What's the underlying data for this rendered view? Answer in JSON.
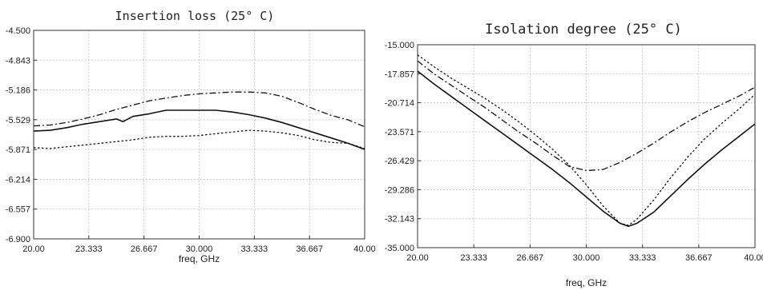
{
  "chart_data": [
    {
      "type": "line",
      "title": "Insertion loss (25° C)",
      "xlabel": "freq, GHz",
      "ylabel": "",
      "xlim": [
        20,
        40
      ],
      "ylim": [
        -6.9,
        -4.5
      ],
      "x_ticks": [
        "20.00",
        "23.333",
        "26.667",
        "30.000",
        "33.333",
        "36.667",
        "40.00"
      ],
      "y_ticks": [
        "-4.500",
        "-4.843",
        "-5.186",
        "-5.529",
        "-5.871",
        "-6.214",
        "-6.557",
        "-6.900"
      ],
      "grid": true,
      "series": [
        {
          "style": "dash-dot",
          "x": [
            20,
            21,
            22,
            23,
            24,
            25,
            26,
            27,
            28,
            29,
            30,
            31,
            32,
            33,
            34,
            35,
            36,
            37,
            38,
            39,
            40
          ],
          "y": [
            -5.6,
            -5.59,
            -5.56,
            -5.52,
            -5.47,
            -5.41,
            -5.36,
            -5.31,
            -5.28,
            -5.25,
            -5.23,
            -5.22,
            -5.21,
            -5.21,
            -5.22,
            -5.26,
            -5.33,
            -5.41,
            -5.48,
            -5.53,
            -5.61
          ]
        },
        {
          "style": "solid",
          "x": [
            20,
            21,
            22,
            23,
            24,
            25,
            25.4,
            26,
            27,
            28,
            29,
            30,
            31,
            32,
            33,
            34,
            35,
            36,
            37,
            38,
            39,
            40
          ],
          "y": [
            -5.66,
            -5.65,
            -5.62,
            -5.58,
            -5.55,
            -5.52,
            -5.55,
            -5.49,
            -5.46,
            -5.42,
            -5.42,
            -5.42,
            -5.42,
            -5.44,
            -5.47,
            -5.51,
            -5.56,
            -5.62,
            -5.68,
            -5.74,
            -5.8,
            -5.87
          ]
        },
        {
          "style": "dotted",
          "x": [
            20,
            21,
            22,
            23,
            24,
            25,
            26,
            27,
            28,
            29,
            30,
            31,
            32,
            33,
            34,
            35,
            36,
            37,
            38,
            39,
            40
          ],
          "y": [
            -5.85,
            -5.86,
            -5.84,
            -5.82,
            -5.8,
            -5.78,
            -5.76,
            -5.73,
            -5.72,
            -5.72,
            -5.71,
            -5.69,
            -5.67,
            -5.65,
            -5.66,
            -5.68,
            -5.71,
            -5.76,
            -5.79,
            -5.8,
            -5.86
          ]
        }
      ]
    },
    {
      "type": "line",
      "title": "Isolation degree (25° C)",
      "xlabel": "freq, GHz",
      "ylabel": "",
      "xlim": [
        20,
        40
      ],
      "ylim": [
        -35,
        -15
      ],
      "x_ticks": [
        "20.00",
        "23.333",
        "26.667",
        "30.000",
        "33.333",
        "36.667",
        "40.00"
      ],
      "y_ticks": [
        "-15.000",
        "-17.857",
        "-20.714",
        "-23.571",
        "-26.429",
        "-29.286",
        "-32.143",
        "-35.000"
      ],
      "grid": true,
      "series": [
        {
          "style": "solid",
          "x": [
            20,
            21,
            22,
            23,
            24,
            25,
            26,
            27,
            28,
            29,
            30,
            31,
            32,
            32.5,
            33,
            34,
            35,
            36,
            37,
            38,
            39,
            40
          ],
          "y": [
            -17.6,
            -18.9,
            -20.1,
            -21.3,
            -22.5,
            -23.7,
            -24.9,
            -26.1,
            -27.3,
            -28.6,
            -30.0,
            -31.4,
            -32.6,
            -32.9,
            -32.6,
            -31.5,
            -29.9,
            -28.3,
            -26.8,
            -25.4,
            -24.1,
            -22.8
          ]
        },
        {
          "style": "dash-dot",
          "x": [
            20,
            21,
            22,
            23,
            24,
            25,
            26,
            27,
            28,
            29,
            30,
            31,
            32,
            33,
            34,
            35,
            36,
            37,
            38,
            39,
            40
          ],
          "y": [
            -16.6,
            -17.9,
            -19.0,
            -20.1,
            -21.2,
            -22.4,
            -23.6,
            -24.7,
            -25.9,
            -27.0,
            -27.4,
            -27.3,
            -26.6,
            -25.7,
            -24.7,
            -23.6,
            -22.6,
            -21.7,
            -20.9,
            -20.1,
            -19.2
          ]
        },
        {
          "style": "dotted",
          "x": [
            20,
            21,
            22,
            23,
            24,
            25,
            26,
            27,
            28,
            29,
            30,
            31,
            32,
            32.5,
            33,
            34,
            35,
            36,
            37,
            38,
            39,
            40
          ],
          "y": [
            -16.0,
            -17.2,
            -18.3,
            -19.3,
            -20.3,
            -21.4,
            -22.6,
            -23.9,
            -25.3,
            -26.9,
            -28.8,
            -30.9,
            -32.6,
            -32.8,
            -32.2,
            -30.3,
            -28.1,
            -26.1,
            -24.3,
            -22.8,
            -21.4,
            -19.9
          ]
        }
      ]
    }
  ]
}
